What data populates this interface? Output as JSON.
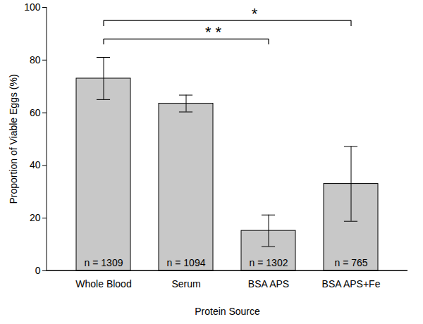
{
  "chart_data": {
    "type": "bar",
    "categories": [
      "Whole Blood",
      "Serum",
      "BSA APS",
      "BSA APS+Fe"
    ],
    "values": [
      73,
      63.5,
      15.2,
      33
    ],
    "error": [
      8,
      3.2,
      6,
      14.2
    ],
    "n_labels": [
      "n = 1309",
      "n = 1094",
      "n = 1302",
      "n = 765"
    ],
    "significance": [
      {
        "from": "Whole Blood",
        "to": "BSA APS",
        "label": "* *",
        "y": 88
      },
      {
        "from": "Whole Blood",
        "to": "BSA APS+Fe",
        "label": "*",
        "y": 95
      }
    ],
    "color": "#c8c8c8",
    "xlabel": "Protein Source",
    "ylabel": "Proportion of Viable Eggs (%)",
    "ylim": [
      0,
      100
    ],
    "yticks": [
      0,
      20,
      40,
      60,
      80,
      100
    ],
    "grid": false
  }
}
